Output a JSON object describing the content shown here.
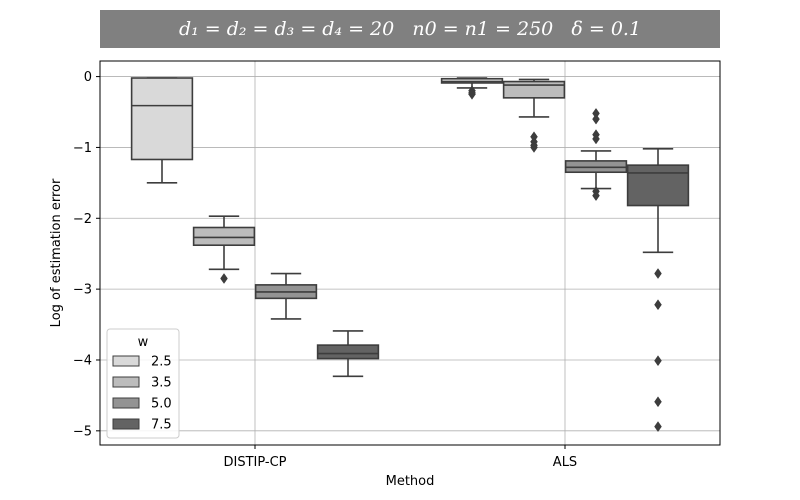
{
  "chart_data": {
    "type": "boxplot",
    "title": "d₁ = d₂ = d₃ = d₄ = 20   n0 = n1 = 250   δ = 0.1",
    "xlabel": "Method",
    "ylabel": "Log of estimation error",
    "categories": [
      "DISTIP-CP",
      "ALS"
    ],
    "ylim": [
      -5.2,
      0.22
    ],
    "yticks": [
      0,
      -1,
      -2,
      -3,
      -4,
      -5
    ],
    "ytick_labels": [
      "0",
      "−1",
      "−2",
      "−3",
      "−4",
      "−5"
    ],
    "grid": true,
    "legend": {
      "title": "w",
      "placement": "lower-left"
    },
    "series": [
      {
        "name": "2.5",
        "color": "#d9d9d9",
        "boxes": [
          {
            "category": "DISTIP-CP",
            "whislo": -1.5,
            "q1": -1.17,
            "med": -0.41,
            "q3": -0.02,
            "whishi": -0.02,
            "fliers": []
          },
          {
            "category": "ALS",
            "whislo": -0.16,
            "q1": -0.09,
            "med": -0.07,
            "q3": -0.03,
            "whishi": -0.02,
            "fliers": [
              -0.2,
              -0.23,
              -0.25
            ]
          }
        ]
      },
      {
        "name": "3.5",
        "color": "#bcbcbc",
        "boxes": [
          {
            "category": "DISTIP-CP",
            "whislo": -2.72,
            "q1": -2.38,
            "med": -2.27,
            "q3": -2.13,
            "whishi": -1.97,
            "fliers": [
              -2.85
            ]
          },
          {
            "category": "ALS",
            "whislo": -0.57,
            "q1": -0.3,
            "med": -0.12,
            "q3": -0.07,
            "whishi": -0.04,
            "fliers": [
              -0.85,
              -0.92,
              -0.97,
              -1.0
            ]
          }
        ]
      },
      {
        "name": "5.0",
        "color": "#939393",
        "boxes": [
          {
            "category": "DISTIP-CP",
            "whislo": -3.42,
            "q1": -3.13,
            "med": -3.04,
            "q3": -2.94,
            "whishi": -2.78,
            "fliers": []
          },
          {
            "category": "ALS",
            "whislo": -1.58,
            "q1": -1.35,
            "med": -1.28,
            "q3": -1.19,
            "whishi": -1.05,
            "fliers": [
              -0.52,
              -0.6,
              -0.82,
              -0.88,
              -1.62,
              -1.68
            ]
          }
        ]
      },
      {
        "name": "7.5",
        "color": "#636363",
        "boxes": [
          {
            "category": "DISTIP-CP",
            "whislo": -4.23,
            "q1": -3.98,
            "med": -3.91,
            "q3": -3.79,
            "whishi": -3.59,
            "fliers": []
          },
          {
            "category": "ALS",
            "whislo": -2.48,
            "q1": -1.82,
            "med": -1.36,
            "q3": -1.25,
            "whishi": -1.02,
            "fliers": [
              -2.78,
              -3.22,
              -4.01,
              -4.59,
              -4.94
            ]
          }
        ]
      }
    ]
  }
}
